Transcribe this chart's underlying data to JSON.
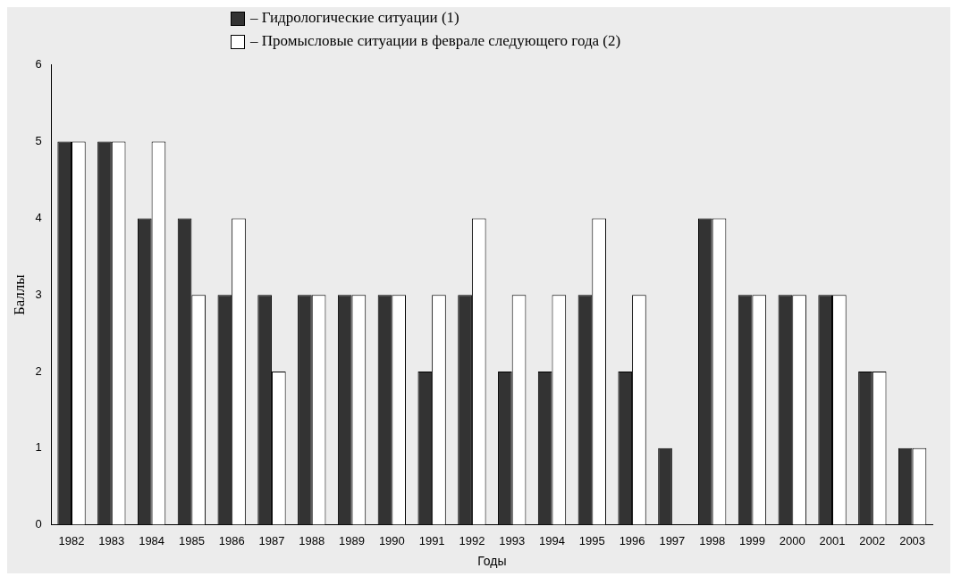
{
  "chart_data": {
    "type": "bar",
    "xlabel": "Годы",
    "ylabel": "Баллы",
    "categories": [
      "1982",
      "1983",
      "1984",
      "1985",
      "1986",
      "1987",
      "1988",
      "1989",
      "1990",
      "1991",
      "1992",
      "1993",
      "1994",
      "1995",
      "1996",
      "1997",
      "1998",
      "1999",
      "2000",
      "2001",
      "2002",
      "2003"
    ],
    "series": [
      {
        "name": "– Гидрологические ситуации (1)",
        "color": "#333333",
        "values": [
          5,
          5,
          4,
          4,
          3,
          3,
          3,
          3,
          3,
          2,
          3,
          2,
          2,
          3,
          2,
          1,
          4,
          3,
          3,
          3,
          2,
          1
        ]
      },
      {
        "name": "– Промысловые ситуации в феврале следующего года (2)",
        "color": "#ffffff",
        "values": [
          5,
          5,
          5,
          3,
          4,
          2,
          3,
          3,
          3,
          3,
          4,
          3,
          3,
          4,
          3,
          null,
          4,
          3,
          3,
          3,
          2,
          1
        ]
      }
    ],
    "ylim": [
      0,
      6
    ],
    "yticks": [
      0,
      1,
      2,
      3,
      4,
      5,
      6
    ],
    "grid": false,
    "legend": "top"
  }
}
